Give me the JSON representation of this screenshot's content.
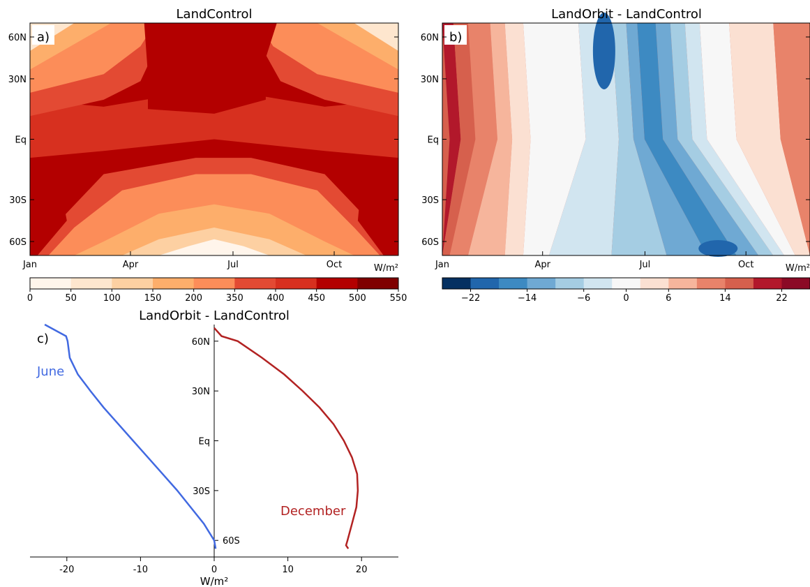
{
  "chart_data": [
    {
      "id": "a",
      "type": "heatmap",
      "panel_label": "a)",
      "title": "LandControl",
      "x_ticks": [
        "Jan",
        "Apr",
        "Jul",
        "Oct"
      ],
      "y_ticks": [
        "60N",
        "30N",
        "Eq",
        "30S",
        "60S"
      ],
      "unit": "W/m²",
      "levels": [
        0,
        50,
        100,
        150,
        200,
        350,
        400,
        450,
        500,
        550
      ],
      "colors": [
        "#fff5eb",
        "#fee6ce",
        "#fdd0a2",
        "#fdae6b",
        "#fc8d59",
        "#e34a33",
        "#d7301f",
        "#b30000",
        "#7f0000"
      ],
      "colorbar_labels": [
        "0",
        "50",
        "100",
        "150",
        "200",
        "350",
        "400",
        "450",
        "500",
        "550"
      ]
    },
    {
      "id": "b",
      "type": "heatmap",
      "panel_label": "b)",
      "title": "LandOrbit - LandControl",
      "x_ticks": [
        "Jan",
        "Apr",
        "Jul",
        "Oct"
      ],
      "y_ticks": [
        "60N",
        "30N",
        "Eq",
        "30S",
        "60S"
      ],
      "unit": "W/m²",
      "levels": [
        -26,
        -22,
        -18,
        -14,
        -10,
        -6,
        -2,
        2,
        6,
        10,
        14,
        18,
        22,
        26
      ],
      "colors": [
        "#053061",
        "#2166ac",
        "#3d8ac2",
        "#6fa9d3",
        "#a5cde3",
        "#d1e5f0",
        "#f7f7f7",
        "#fbe0d2",
        "#f6b59c",
        "#e8836a",
        "#d6604d",
        "#b2182b",
        "#8b0a26"
      ],
      "colorbar_labels": [
        "−22",
        "−14",
        "−6",
        "0",
        "6",
        "14",
        "22"
      ]
    },
    {
      "id": "c",
      "type": "line",
      "panel_label": "c)",
      "title": "LandOrbit - LandControl",
      "xlabel": "W/m²",
      "x_ticks": [
        "-20",
        "-10",
        "0",
        "10",
        "20"
      ],
      "y_ticks": [
        "60N",
        "30N",
        "Eq",
        "30S",
        "60S"
      ],
      "xlim": [
        -25,
        25
      ],
      "series": [
        {
          "name": "June",
          "color": "#4169e1",
          "points": [
            [
              -23,
              70
            ],
            [
              -20.1,
              63
            ],
            [
              -19.9,
              60
            ],
            [
              -19.6,
              50
            ],
            [
              -18.5,
              40
            ],
            [
              -16.8,
              30
            ],
            [
              -15,
              20
            ],
            [
              -13,
              10
            ],
            [
              -11,
              0
            ],
            [
              -9,
              -10
            ],
            [
              -7,
              -20
            ],
            [
              -5,
              -30
            ],
            [
              -3.2,
              -40
            ],
            [
              -1.4,
              -50
            ],
            [
              0,
              -60
            ],
            [
              0.2,
              -65
            ]
          ]
        },
        {
          "name": "December",
          "color": "#b22222",
          "points": [
            [
              0,
              68
            ],
            [
              1,
              63
            ],
            [
              3.2,
              60
            ],
            [
              6.5,
              50
            ],
            [
              9.5,
              40
            ],
            [
              12,
              30
            ],
            [
              14.3,
              20
            ],
            [
              16.2,
              10
            ],
            [
              17.6,
              0
            ],
            [
              18.7,
              -10
            ],
            [
              19.4,
              -20
            ],
            [
              19.5,
              -30
            ],
            [
              19.3,
              -40
            ],
            [
              18.7,
              -50
            ],
            [
              18.1,
              -60
            ],
            [
              17.9,
              -63
            ],
            [
              18.2,
              -65
            ]
          ]
        }
      ]
    }
  ]
}
